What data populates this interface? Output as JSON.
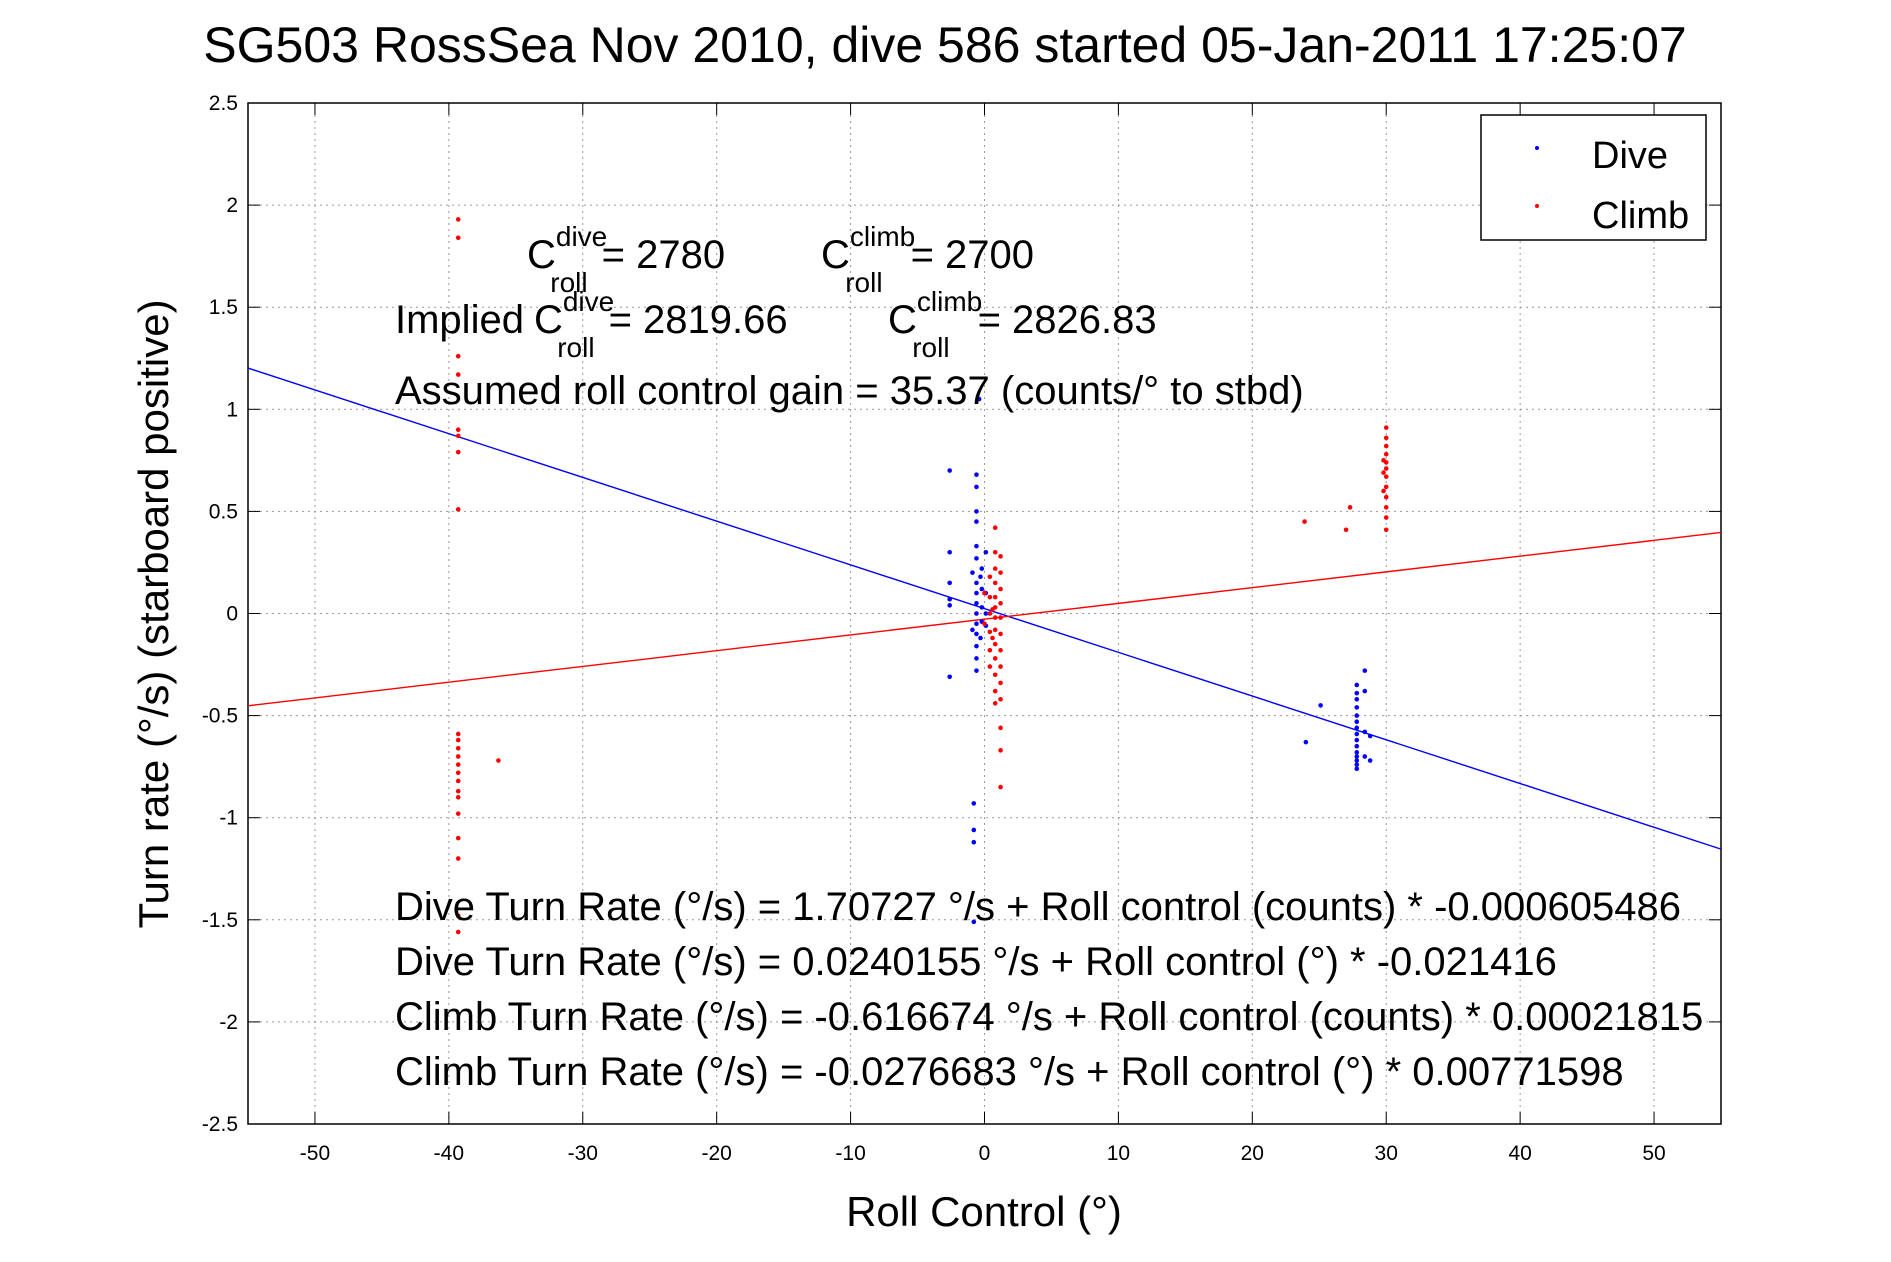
{
  "chart_data": {
    "type": "scatter",
    "title": "SG503 RossSea Nov 2010, dive 586 started 05-Jan-2011 17:25:07",
    "xlabel": "Roll Control (°)",
    "ylabel": "Turn rate (°/s)  (starboard positive)",
    "xlim": [
      -55,
      55
    ],
    "ylim": [
      -2.5,
      2.5
    ],
    "xticks": [
      -50,
      -40,
      -30,
      -20,
      -10,
      0,
      10,
      20,
      30,
      40,
      50
    ],
    "yticks": [
      2.5,
      2,
      1.5,
      1,
      0.5,
      0,
      -0.5,
      -1,
      -1.5,
      -2,
      -2.5
    ],
    "grid": true,
    "legend_position": "top-right",
    "series": [
      {
        "name": "Dive",
        "color": "#0000ff",
        "points": [
          [
            -2.6,
            0.7
          ],
          [
            -2.6,
            0.3
          ],
          [
            -2.6,
            0.15
          ],
          [
            -2.6,
            0.07
          ],
          [
            -2.6,
            0.04
          ],
          [
            -2.6,
            -0.31
          ],
          [
            -0.6,
            0.68
          ],
          [
            -0.6,
            0.62
          ],
          [
            -0.6,
            0.5
          ],
          [
            -0.6,
            0.45
          ],
          [
            -0.6,
            0.33
          ],
          [
            -0.6,
            0.27
          ],
          [
            -0.6,
            0.15
          ],
          [
            -0.6,
            0.1
          ],
          [
            -0.6,
            0.05
          ],
          [
            -0.6,
            0.0
          ],
          [
            -0.6,
            -0.05
          ],
          [
            -0.6,
            -0.1
          ],
          [
            -0.6,
            -0.16
          ],
          [
            -0.6,
            -0.22
          ],
          [
            -0.6,
            -0.28
          ],
          [
            -0.9,
            0.2
          ],
          [
            -0.9,
            -0.08
          ],
          [
            -0.4,
            1.05
          ],
          [
            -0.8,
            -0.93
          ],
          [
            -0.8,
            -1.06
          ],
          [
            -0.8,
            -1.12
          ],
          [
            -0.8,
            -1.51
          ],
          [
            -0.2,
            0.22
          ],
          [
            -0.2,
            0.12
          ],
          [
            -0.2,
            0.03
          ],
          [
            -0.2,
            -0.04
          ],
          [
            -0.3,
            0.18
          ],
          [
            -0.3,
            -0.12
          ],
          [
            0.1,
            0.3
          ],
          [
            0.1,
            0.1
          ],
          [
            0.1,
            0.0
          ],
          [
            0.1,
            -0.06
          ],
          [
            24.0,
            -0.63
          ],
          [
            25.1,
            -0.45
          ],
          [
            27.8,
            -0.42
          ],
          [
            27.8,
            -0.46
          ],
          [
            27.8,
            -0.5
          ],
          [
            27.8,
            -0.53
          ],
          [
            27.8,
            -0.56
          ],
          [
            27.8,
            -0.59
          ],
          [
            27.8,
            -0.62
          ],
          [
            27.8,
            -0.65
          ],
          [
            27.8,
            -0.68
          ],
          [
            27.8,
            -0.7
          ],
          [
            27.8,
            -0.72
          ],
          [
            27.8,
            -0.74
          ],
          [
            27.8,
            -0.76
          ],
          [
            27.8,
            -0.35
          ],
          [
            27.8,
            -0.39
          ],
          [
            28.4,
            -0.28
          ],
          [
            28.4,
            -0.38
          ],
          [
            28.4,
            -0.58
          ],
          [
            28.4,
            -0.7
          ],
          [
            28.8,
            -0.6
          ],
          [
            28.8,
            -0.72
          ]
        ]
      },
      {
        "name": "Climb",
        "color": "#ff0000",
        "points": [
          [
            -39.3,
            1.93
          ],
          [
            -39.3,
            1.84
          ],
          [
            -39.3,
            1.26
          ],
          [
            -39.3,
            1.17
          ],
          [
            -39.3,
            0.9
          ],
          [
            -39.3,
            0.87
          ],
          [
            -39.3,
            0.79
          ],
          [
            -39.3,
            0.51
          ],
          [
            -39.3,
            -0.59
          ],
          [
            -39.3,
            -0.62
          ],
          [
            -39.3,
            -0.66
          ],
          [
            -39.3,
            -0.7
          ],
          [
            -39.3,
            -0.74
          ],
          [
            -39.3,
            -0.78
          ],
          [
            -39.3,
            -0.82
          ],
          [
            -39.3,
            -0.87
          ],
          [
            -39.3,
            -0.9
          ],
          [
            -39.3,
            -0.98
          ],
          [
            -39.3,
            -1.1
          ],
          [
            -39.3,
            -1.2
          ],
          [
            -39.3,
            -1.48
          ],
          [
            -39.3,
            -1.56
          ],
          [
            -36.3,
            -0.72
          ],
          [
            0.8,
            0.42
          ],
          [
            0.8,
            0.3
          ],
          [
            0.8,
            0.22
          ],
          [
            0.8,
            0.15
          ],
          [
            0.8,
            0.08
          ],
          [
            0.8,
            0.03
          ],
          [
            0.8,
            -0.02
          ],
          [
            0.8,
            -0.08
          ],
          [
            0.8,
            -0.15
          ],
          [
            0.8,
            -0.22
          ],
          [
            0.8,
            -0.3
          ],
          [
            0.8,
            -0.38
          ],
          [
            0.8,
            -0.44
          ],
          [
            1.2,
            0.28
          ],
          [
            1.2,
            0.2
          ],
          [
            1.2,
            0.12
          ],
          [
            1.2,
            0.05
          ],
          [
            1.2,
            -0.02
          ],
          [
            1.2,
            -0.1
          ],
          [
            1.2,
            -0.18
          ],
          [
            1.2,
            -0.26
          ],
          [
            1.2,
            -0.34
          ],
          [
            1.2,
            -0.42
          ],
          [
            1.2,
            -0.56
          ],
          [
            1.2,
            -0.67
          ],
          [
            1.2,
            -0.85
          ],
          [
            0.4,
            0.18
          ],
          [
            0.4,
            0.08
          ],
          [
            0.4,
            0.0
          ],
          [
            0.4,
            -0.09
          ],
          [
            0.4,
            -0.18
          ],
          [
            0.4,
            -0.26
          ],
          [
            0.0,
            0.1
          ],
          [
            0.0,
            -0.05
          ],
          [
            0.6,
            0.02
          ],
          [
            0.6,
            -0.12
          ],
          [
            23.9,
            0.45
          ],
          [
            27.0,
            0.41
          ],
          [
            27.3,
            0.52
          ],
          [
            30.0,
            0.91
          ],
          [
            30.0,
            0.86
          ],
          [
            30.0,
            0.82
          ],
          [
            30.0,
            0.78
          ],
          [
            30.0,
            0.74
          ],
          [
            30.0,
            0.71
          ],
          [
            30.0,
            0.67
          ],
          [
            30.0,
            0.62
          ],
          [
            30.0,
            0.57
          ],
          [
            30.0,
            0.52
          ],
          [
            30.0,
            0.47
          ],
          [
            30.0,
            0.41
          ],
          [
            29.8,
            0.6
          ],
          [
            29.8,
            0.69
          ],
          [
            29.8,
            0.75
          ]
        ]
      }
    ],
    "fit_lines": [
      {
        "series": "Dive",
        "intercept": 0.0240155,
        "slope": -0.021416,
        "color": "#0000ff"
      },
      {
        "series": "Climb",
        "intercept": -0.0276683,
        "slope": 0.00771598,
        "color": "#ff0000"
      }
    ],
    "annotations": {
      "c_dive": {
        "base": "C",
        "sup": "dive",
        "sub": "roll",
        "value": "= 2780"
      },
      "c_climb": {
        "base": "C",
        "sup": "climb",
        "sub": "roll",
        "value": "= 2700"
      },
      "implied_prefix": "Implied",
      "implied_dive": {
        "base": "C",
        "sup": "dive",
        "sub": "roll",
        "value": "= 2819.66"
      },
      "implied_climb": {
        "base": "C",
        "sup": "climb",
        "sub": "roll",
        "value": "= 2826.83"
      },
      "gain": "Assumed roll control gain = 35.37 (counts/° to stbd)",
      "equations": [
        "Dive Turn Rate (°/s) = 1.70727 °/s + Roll control (counts) * -0.000605486",
        "Dive Turn Rate (°/s) = 0.0240155 °/s + Roll control (°) * -0.021416",
        "Climb Turn Rate (°/s) = -0.616674 °/s + Roll control (counts) * 0.00021815",
        "Climb Turn Rate (°/s) = -0.0276683 °/s + Roll control (°) * 0.00771598"
      ]
    }
  }
}
